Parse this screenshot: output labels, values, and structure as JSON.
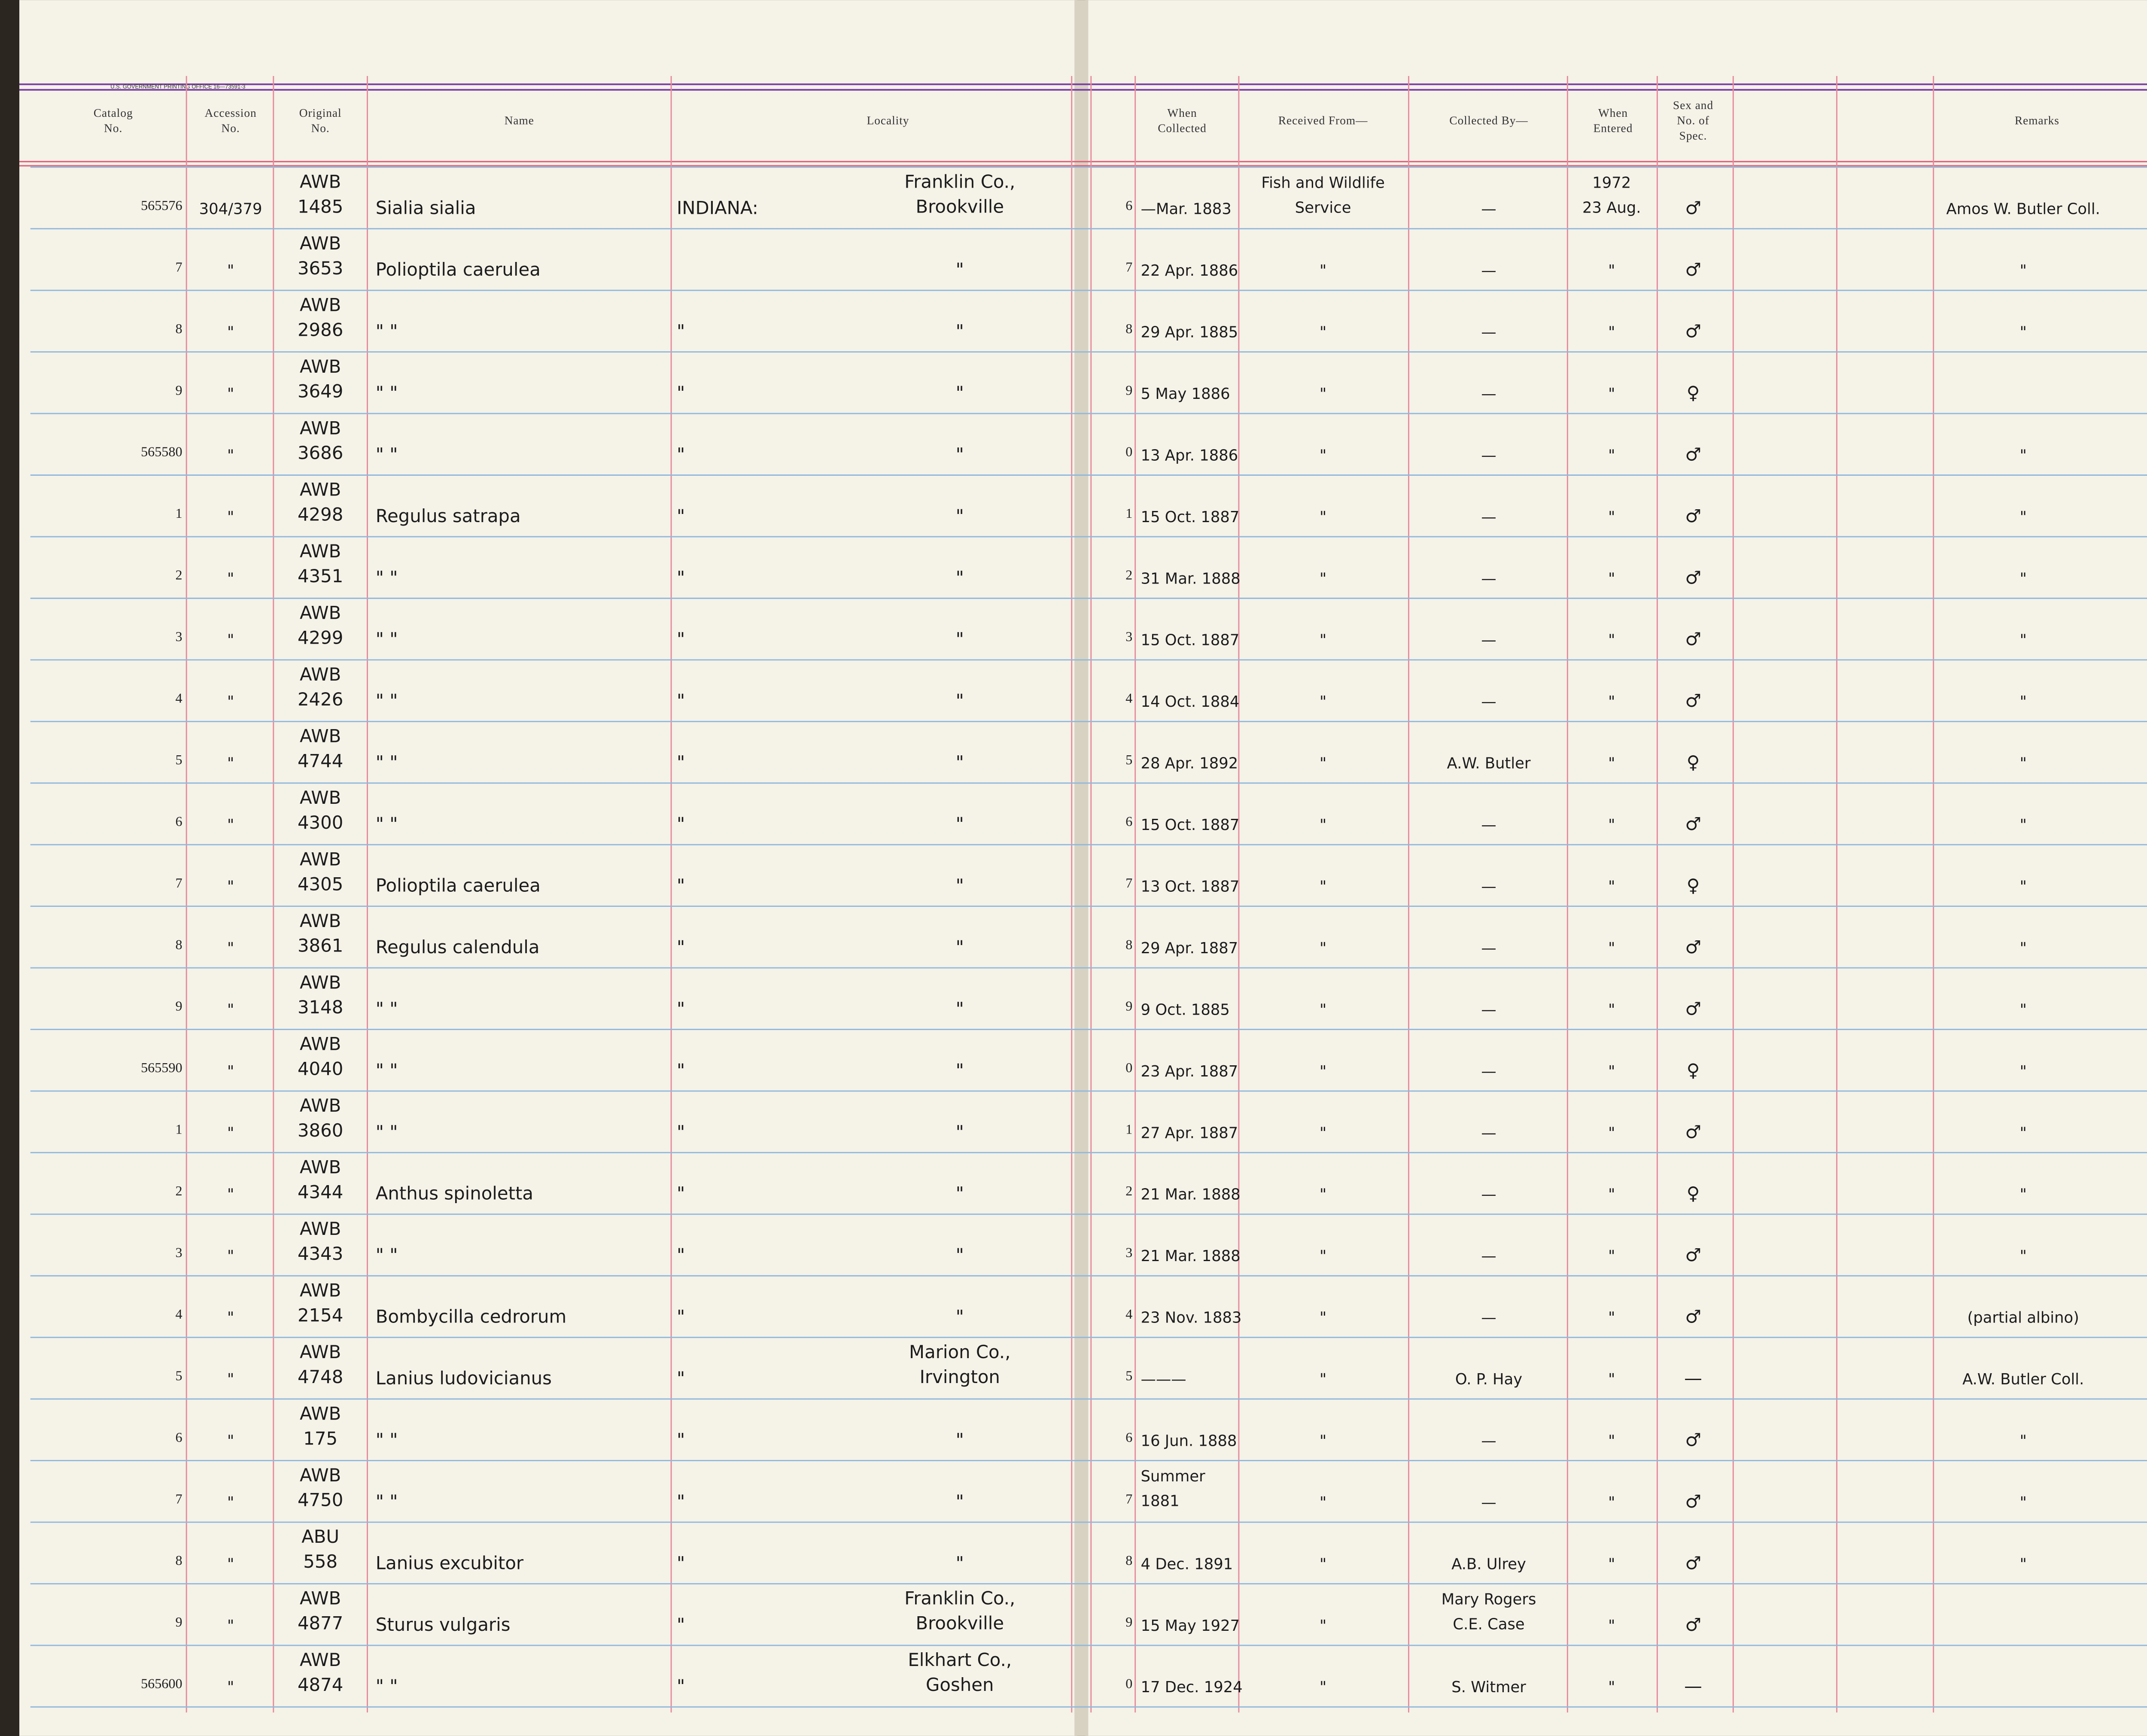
{
  "header": {
    "printer": "U.S. GOVERNMENT PRINTING OFFICE 16—73591-3",
    "columns": [
      [
        "Catalog",
        "No."
      ],
      [
        "Accession",
        "No."
      ],
      [
        "Original",
        "No."
      ],
      [
        "Name"
      ],
      [
        "Locality"
      ],
      [
        "When",
        "Collected"
      ],
      [
        "Received From—"
      ],
      [
        "Collected By—"
      ],
      [
        "When",
        "Entered"
      ],
      [
        "Sex and",
        "No. of",
        "Spec."
      ],
      [
        "Remarks"
      ]
    ]
  },
  "rows": [
    [
      "565576",
      "304/379",
      [
        "AWB",
        "1485"
      ],
      "Sialia sialia",
      "INDIANA:",
      [
        "Franklin Co.,",
        "Brookville"
      ],
      "6",
      "—Mar. 1883",
      [
        "Fish and Wildlife",
        "Service"
      ],
      "—",
      [
        "1972",
        "23 Aug."
      ],
      "♂",
      "Amos W. Butler Coll."
    ],
    [
      "7",
      "\"",
      [
        "AWB",
        "3653"
      ],
      "Polioptila caerulea",
      "",
      "\"",
      "7",
      "22 Apr. 1886",
      "\"",
      "—",
      "\"",
      "♂",
      "\""
    ],
    [
      "8",
      "\"",
      [
        "AWB",
        "2986"
      ],
      "\"     \"",
      "\"",
      "\"",
      "8",
      "29 Apr. 1885",
      "\"",
      "—",
      "\"",
      "♂",
      "\""
    ],
    [
      "9",
      "\"",
      [
        "AWB",
        "3649"
      ],
      "\"     \"",
      "\"",
      "\"",
      "9",
      "5 May 1886",
      "\"",
      "—",
      "\"",
      "♀",
      ""
    ],
    [
      "565580",
      "\"",
      [
        "AWB",
        "3686"
      ],
      "\"     \"",
      "\"",
      "\"",
      "0",
      "13 Apr. 1886",
      "\"",
      "—",
      "\"",
      "♂",
      "\""
    ],
    [
      "1",
      "\"",
      [
        "AWB",
        "4298"
      ],
      "Regulus satrapa",
      "\"",
      "\"",
      "1",
      "15 Oct. 1887",
      "\"",
      "—",
      "\"",
      "♂",
      "\""
    ],
    [
      "2",
      "\"",
      [
        "AWB",
        "4351"
      ],
      "\"     \"",
      "\"",
      "\"",
      "2",
      "31 Mar. 1888",
      "\"",
      "—",
      "\"",
      "♂",
      "\""
    ],
    [
      "3",
      "\"",
      [
        "AWB",
        "4299"
      ],
      "\"     \"",
      "\"",
      "\"",
      "3",
      "15 Oct. 1887",
      "\"",
      "—",
      "\"",
      "♂",
      "\""
    ],
    [
      "4",
      "\"",
      [
        "AWB",
        "2426"
      ],
      "\"     \"",
      "\"",
      "\"",
      "4",
      "14 Oct. 1884",
      "\"",
      "—",
      "\"",
      "♂",
      "\""
    ],
    [
      "5",
      "\"",
      [
        "AWB",
        "4744"
      ],
      "\"     \"",
      "\"",
      "\"",
      "5",
      "28 Apr. 1892",
      "\"",
      "A.W. Butler",
      "\"",
      "♀",
      "\""
    ],
    [
      "6",
      "\"",
      [
        "AWB",
        "4300"
      ],
      "\"     \"",
      "\"",
      "\"",
      "6",
      "15 Oct. 1887",
      "\"",
      "—",
      "\"",
      "♂",
      "\""
    ],
    [
      "7",
      "\"",
      [
        "AWB",
        "4305"
      ],
      "Polioptila caerulea",
      "\"",
      "\"",
      "7",
      "13 Oct. 1887",
      "\"",
      "—",
      "\"",
      "♀",
      "\""
    ],
    [
      "8",
      "\"",
      [
        "AWB",
        "3861"
      ],
      "Regulus calendula",
      "\"",
      "\"",
      "8",
      "29 Apr. 1887",
      "\"",
      "—",
      "\"",
      "♂",
      "\""
    ],
    [
      "9",
      "\"",
      [
        "AWB",
        "3148"
      ],
      "\"     \"",
      "\"",
      "\"",
      "9",
      "9 Oct. 1885",
      "\"",
      "—",
      "\"",
      "♂",
      "\""
    ],
    [
      "565590",
      "\"",
      [
        "AWB",
        "4040"
      ],
      "\"     \"",
      "\"",
      "\"",
      "0",
      "23 Apr. 1887",
      "\"",
      "—",
      "\"",
      "♀",
      "\""
    ],
    [
      "1",
      "\"",
      [
        "AWB",
        "3860"
      ],
      "\"     \"",
      "\"",
      "\"",
      "1",
      "27 Apr. 1887",
      "\"",
      "—",
      "\"",
      "♂",
      "\""
    ],
    [
      "2",
      "\"",
      [
        "AWB",
        "4344"
      ],
      "Anthus spinoletta",
      "\"",
      "\"",
      "2",
      "21 Mar. 1888",
      "\"",
      "—",
      "\"",
      "♀",
      "\""
    ],
    [
      "3",
      "\"",
      [
        "AWB",
        "4343"
      ],
      "\"     \"",
      "\"",
      "\"",
      "3",
      "21 Mar. 1888",
      "\"",
      "—",
      "\"",
      "♂",
      "\""
    ],
    [
      "4",
      "\"",
      [
        "AWB",
        "2154"
      ],
      "Bombycilla cedrorum",
      "\"",
      "\"",
      "4",
      "23 Nov. 1883",
      "\"",
      "—",
      "\"",
      "♂",
      "(partial albino)"
    ],
    [
      "5",
      "\"",
      [
        "AWB",
        "4748"
      ],
      "Lanius ludovicianus",
      "\"",
      [
        "Marion Co.,",
        "Irvington"
      ],
      "5",
      "———",
      "\"",
      "O. P. Hay",
      "\"",
      "—",
      "A.W. Butler Coll."
    ],
    [
      "6",
      "\"",
      [
        "AWB",
        "175"
      ],
      "\"     \"",
      "\"",
      "\"",
      "6",
      "16 Jun. 1888",
      "\"",
      "—",
      "\"",
      "♂",
      "\""
    ],
    [
      "7",
      "\"",
      [
        "AWB",
        "4750"
      ],
      "\"     \"",
      "\"",
      "\"",
      "7",
      [
        "Summer",
        "1881"
      ],
      "\"",
      "—",
      "\"",
      "♂",
      "\""
    ],
    [
      "8",
      "\"",
      [
        "ABU",
        "558"
      ],
      "Lanius excubitor",
      "\"",
      "\"",
      "8",
      "4 Dec. 1891",
      "\"",
      "A.B. Ulrey",
      "\"",
      "♂",
      "\""
    ],
    [
      "9",
      "\"",
      [
        "AWB",
        "4877"
      ],
      "Sturus vulgaris",
      "\"",
      [
        "Franklin Co.,",
        "Brookville"
      ],
      "9",
      "15 May 1927",
      "\"",
      [
        "Mary Rogers",
        "C.E. Case"
      ],
      "\"",
      "♂",
      ""
    ],
    [
      "565600",
      "\"",
      [
        "AWB",
        "4874"
      ],
      "\"     \"",
      "\"",
      [
        "Elkhart Co.,",
        "Goshen"
      ],
      "0",
      "17 Dec. 1924",
      "\"",
      "S. Witmer",
      "\"",
      "—",
      ""
    ]
  ]
}
